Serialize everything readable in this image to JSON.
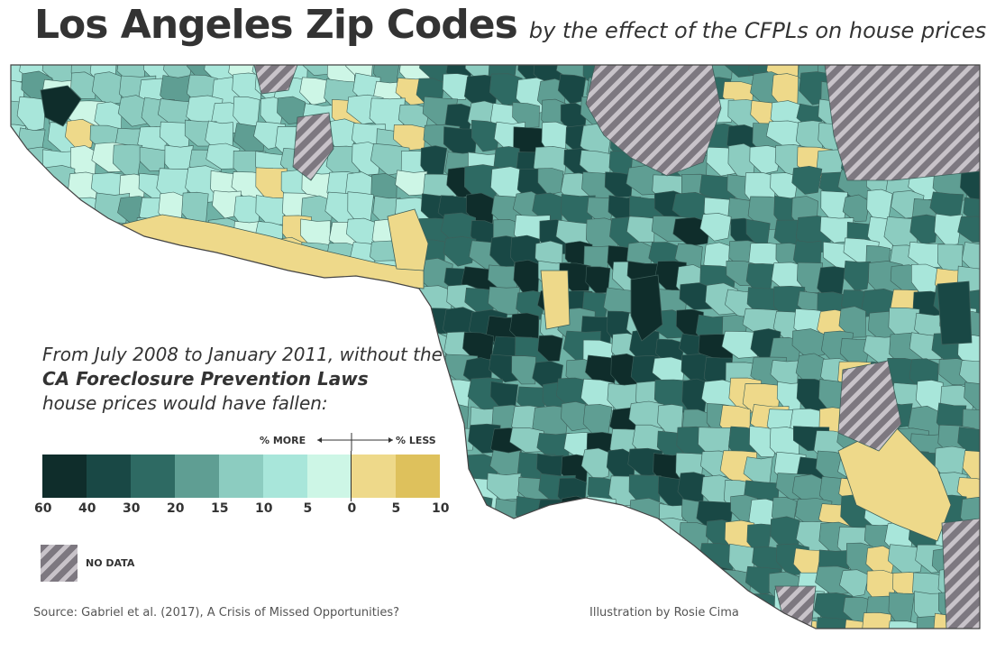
{
  "title": "Los Angeles Zip Codes",
  "subtitle": "by the effect of the CFPLs on house prices",
  "intro": {
    "line1": "From July 2008 to January 2011, without the",
    "line2": "CA Foreclosure Prevention Laws",
    "line3": "house prices would have fallen:"
  },
  "legend": {
    "more_label": "% MORE",
    "less_label": "% LESS",
    "colors": [
      "#0f2d2b",
      "#194845",
      "#2e6a63",
      "#5f9e93",
      "#8cccc0",
      "#a8e6da",
      "#cdf6e6",
      "#eed98a",
      "#dec15c"
    ],
    "ticks": [
      "60",
      "40",
      "30",
      "20",
      "15",
      "10",
      "5",
      "0",
      "5",
      "10"
    ],
    "nodata_label": "NO DATA"
  },
  "source": "Source: Gabriel et al. (2017), A Crisis of Missed Opportunities?",
  "credit": "Illustration by Rosie Cima"
}
